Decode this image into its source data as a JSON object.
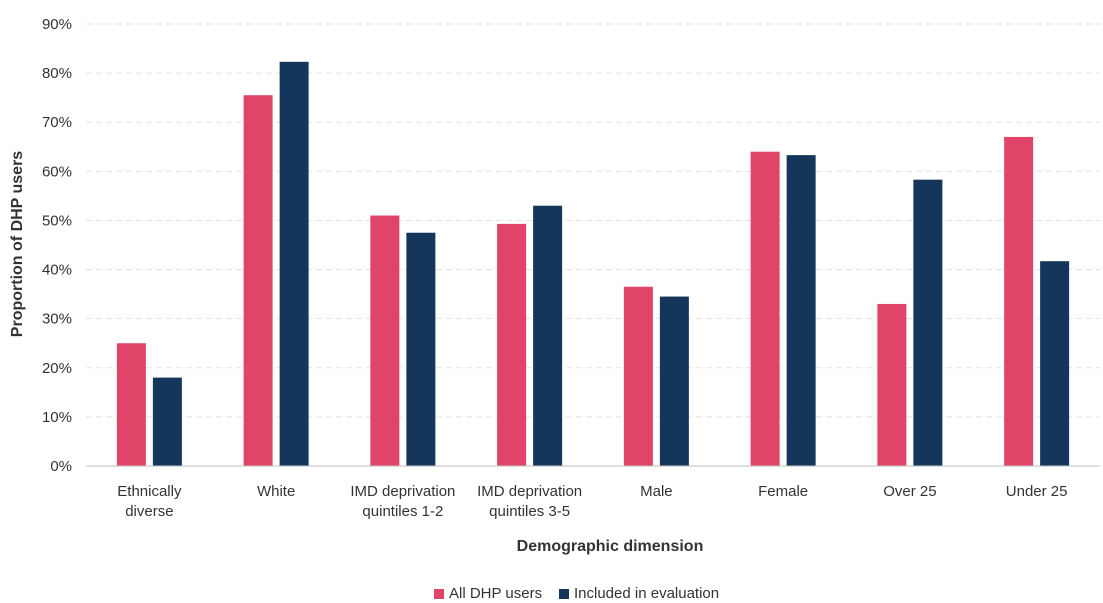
{
  "chart_data": {
    "type": "bar",
    "title": "",
    "xlabel": "Demographic dimension",
    "ylabel": "Proportion of DHP users",
    "ylim": [
      0,
      90
    ],
    "y_ticks": [
      "0%",
      "10%",
      "20%",
      "30%",
      "40%",
      "50%",
      "60%",
      "70%",
      "80%",
      "90%"
    ],
    "grid": "horizontal dashed",
    "legend_position": "bottom",
    "categories": [
      [
        "Ethnically",
        "diverse"
      ],
      [
        "White"
      ],
      [
        "IMD deprivation",
        "quintiles 1-2"
      ],
      [
        "IMD deprivation",
        "quintiles 3-5"
      ],
      [
        "Male"
      ],
      [
        "Female"
      ],
      [
        "Over 25"
      ],
      [
        "Under 25"
      ]
    ],
    "series": [
      {
        "name": "All DHP users",
        "color": "#E04468",
        "values": [
          25,
          75.5,
          51,
          49.3,
          36.5,
          64,
          33,
          67
        ]
      },
      {
        "name": "Included in evaluation",
        "color": "#14365A",
        "values": [
          18,
          82.3,
          47.5,
          53,
          34.5,
          63.3,
          58.3,
          41.7
        ]
      }
    ]
  }
}
